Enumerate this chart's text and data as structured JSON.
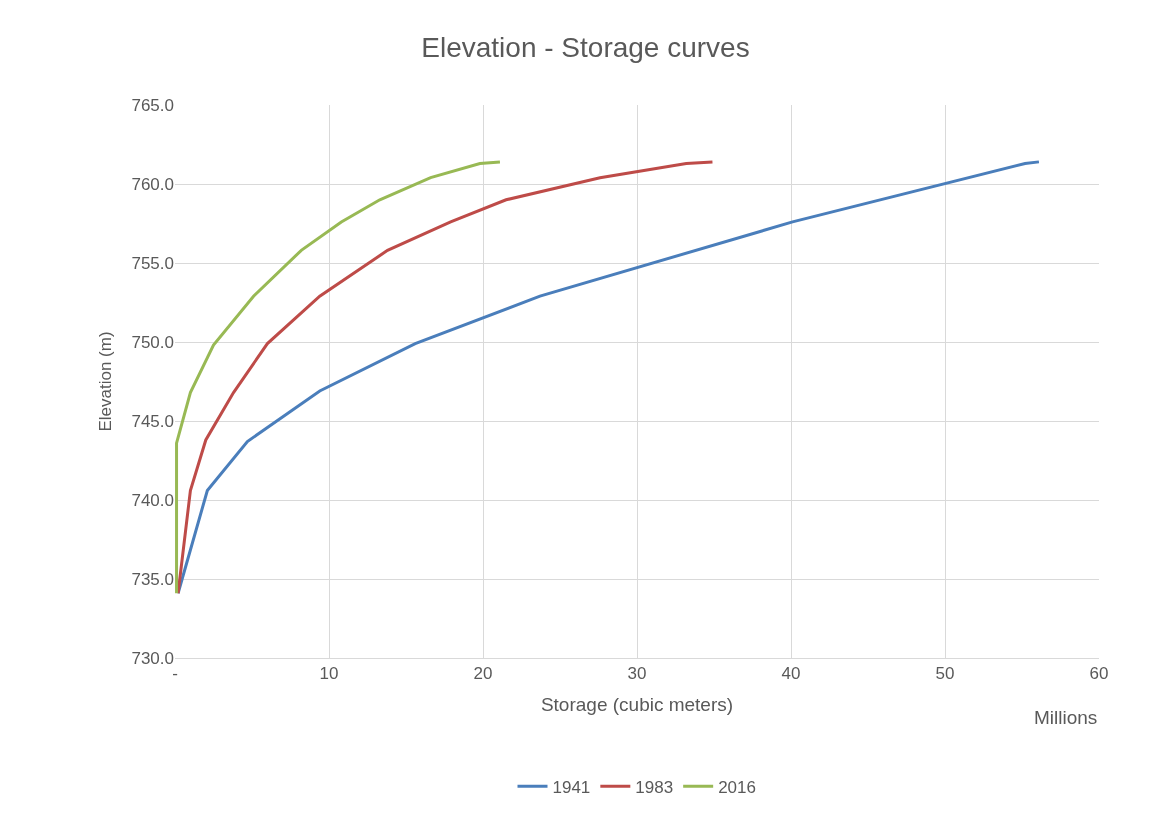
{
  "chart_data": {
    "type": "line",
    "title": "Elevation - Storage curves",
    "xlabel": "Storage (cubic meters)",
    "ylabel": "Elevation (m)",
    "annotations": [
      "Millions"
    ],
    "series": [
      {
        "name": "1941",
        "color": "#4a7ebb",
        "x": [
          0.2,
          2.1,
          4.7,
          9.4,
          15.6,
          23.7,
          40.1,
          55.2,
          56.1
        ],
        "values": [
          734.1,
          740.6,
          743.7,
          746.9,
          749.9,
          752.9,
          757.6,
          761.3,
          761.4
        ]
      },
      {
        "name": "1983",
        "color": "#be4b48",
        "x": [
          0.2,
          1.0,
          2.0,
          3.8,
          6.0,
          9.4,
          13.8,
          17.9,
          21.5,
          27.6,
          33.2,
          34.9
        ],
        "values": [
          734.1,
          740.6,
          743.8,
          746.8,
          749.9,
          752.9,
          755.8,
          757.6,
          759.0,
          760.4,
          761.3,
          761.4
        ]
      },
      {
        "name": "2016",
        "color": "#98b954",
        "x": [
          0.1,
          0.1,
          1.0,
          2.5,
          5.1,
          8.2,
          10.8,
          13.3,
          16.6,
          19.8,
          21.1
        ],
        "values": [
          734.1,
          743.6,
          746.8,
          749.8,
          752.9,
          755.8,
          757.6,
          759.0,
          760.4,
          761.3,
          761.4
        ]
      }
    ],
    "xlim": [
      0,
      60
    ],
    "xticks": [
      {
        "value": 0,
        "label": "-"
      },
      10,
      20,
      30,
      40,
      50,
      60
    ],
    "ylim": [
      730,
      765
    ],
    "yticks": [
      {
        "value": 730,
        "label": "730.0"
      },
      {
        "value": 735,
        "label": "735.0"
      },
      {
        "value": 740,
        "label": "740.0"
      },
      {
        "value": 745,
        "label": "745.0"
      },
      {
        "value": 750,
        "label": "750.0"
      },
      {
        "value": 755,
        "label": "755.0"
      },
      {
        "value": 760,
        "label": "760.0"
      },
      {
        "value": 765,
        "label": "765.0"
      }
    ],
    "grid": true,
    "legend": "bottom",
    "marker": "none",
    "line_style": "solid"
  }
}
